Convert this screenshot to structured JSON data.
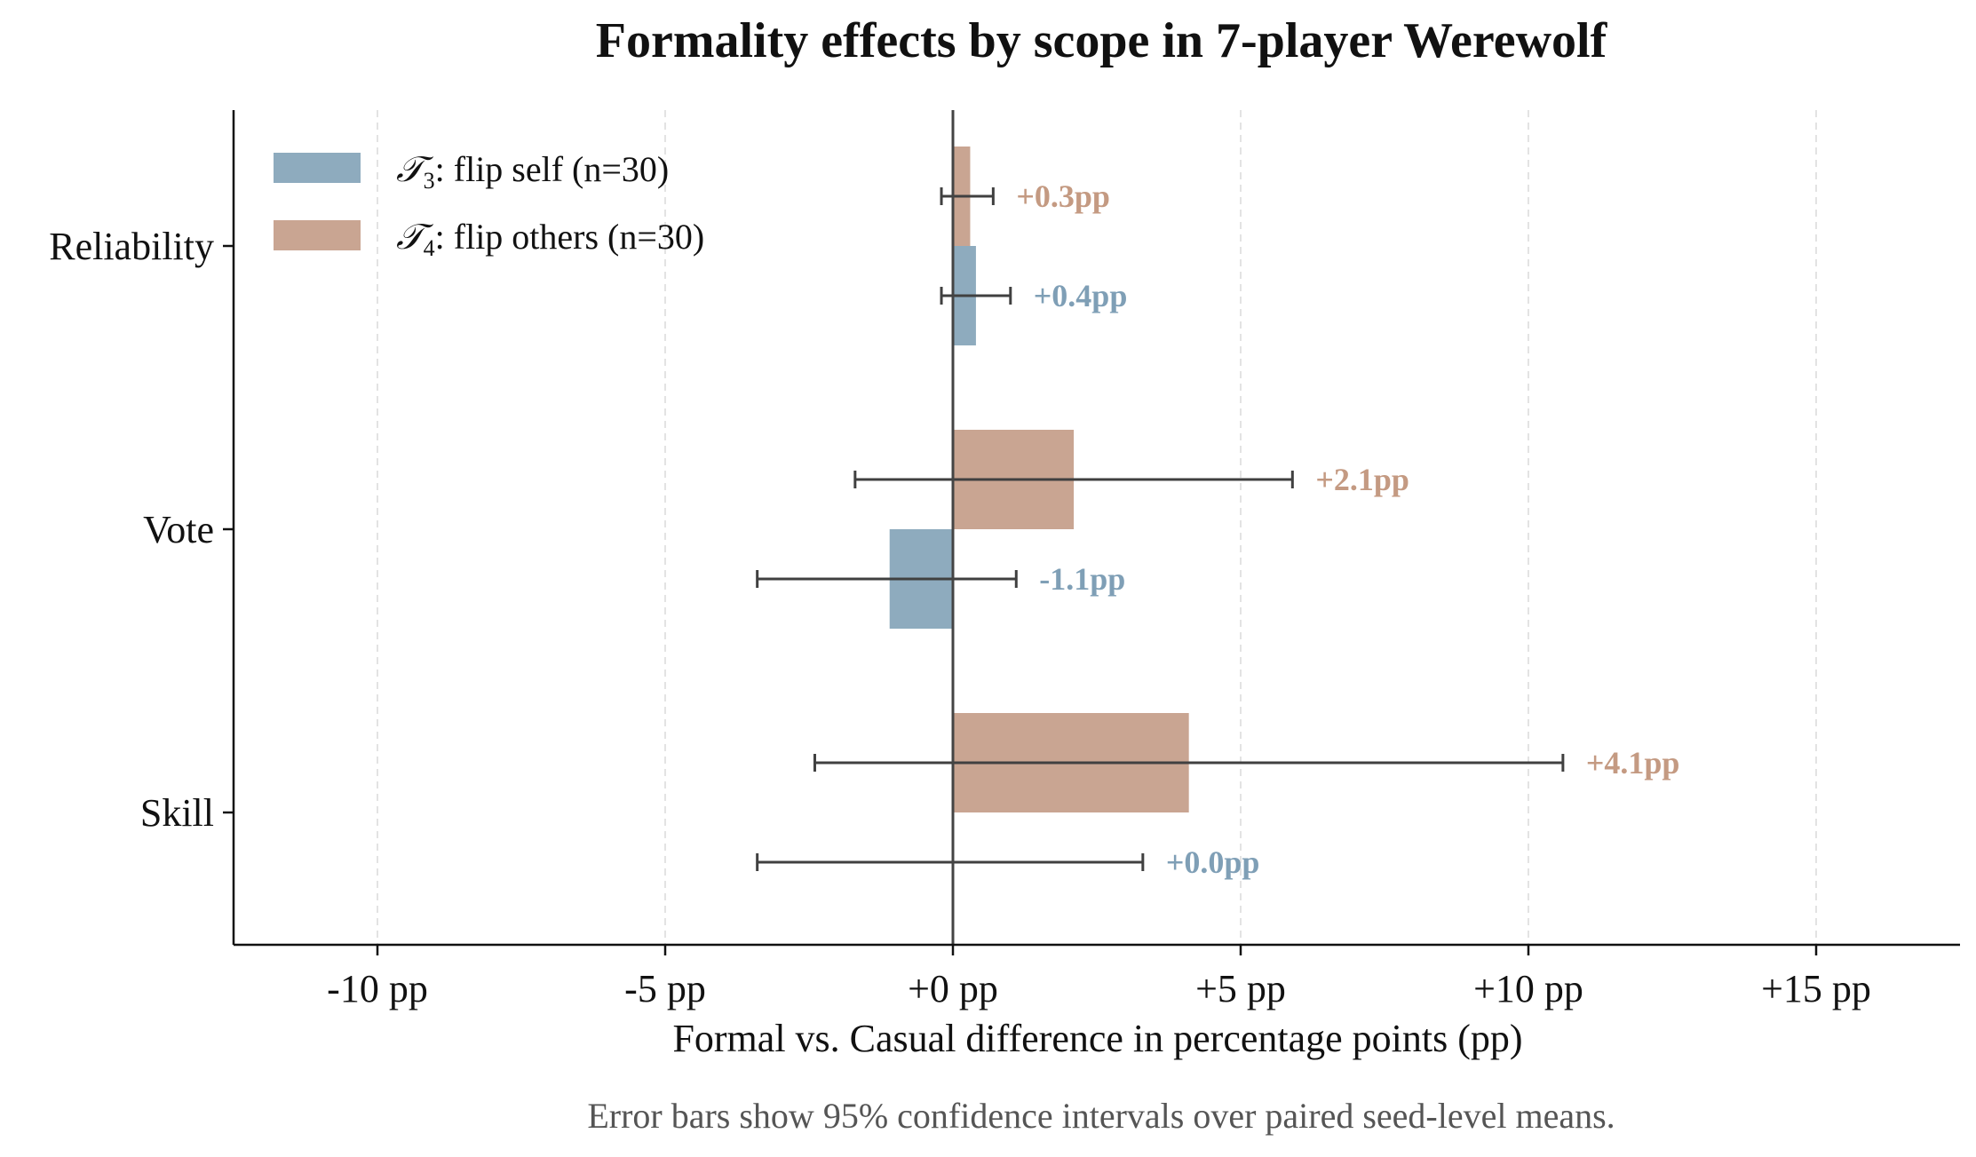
{
  "chart_data": {
    "type": "bar",
    "orientation": "horizontal",
    "title": "Formality effects by scope in 7-player Werewolf",
    "xlabel": "Formal vs. Casual difference in percentage points (pp)",
    "ylabel": "",
    "caption": "Error bars show 95% confidence intervals over paired seed-level means.",
    "categories": [
      "Reliability",
      "Vote",
      "Skill"
    ],
    "xlim": [
      -12.5,
      17.5
    ],
    "xticks": [
      -10,
      -5,
      0,
      5,
      10,
      15
    ],
    "xtick_labels": [
      "-10 pp",
      "-5 pp",
      "+0 pp",
      "+5 pp",
      "+10 pp",
      "+15 pp"
    ],
    "grid": "vertical dashed",
    "legend_position": "top-left",
    "series": [
      {
        "name": "𝒯",
        "name_subscript": "3",
        "name_suffix": ": flip self (n=30)",
        "color": "#8eabbe",
        "label_color": "#7f9fb6",
        "values": [
          0.4,
          -1.1,
          0.0
        ],
        "ci_low": [
          -0.2,
          -3.4,
          -3.4
        ],
        "ci_high": [
          1.0,
          1.1,
          3.3
        ],
        "value_labels": [
          "+0.4pp",
          "-1.1pp",
          "+0.0pp"
        ]
      },
      {
        "name": "𝒯",
        "name_subscript": "4",
        "name_suffix": ": flip others (n=30)",
        "color": "#c9a592",
        "label_color": "#c49a82",
        "values": [
          0.3,
          2.1,
          4.1
        ],
        "ci_low": [
          -0.2,
          -1.7,
          -2.4
        ],
        "ci_high": [
          0.7,
          5.9,
          10.6
        ],
        "value_labels": [
          "+0.3pp",
          "+2.1pp",
          "+4.1pp"
        ]
      }
    ]
  }
}
